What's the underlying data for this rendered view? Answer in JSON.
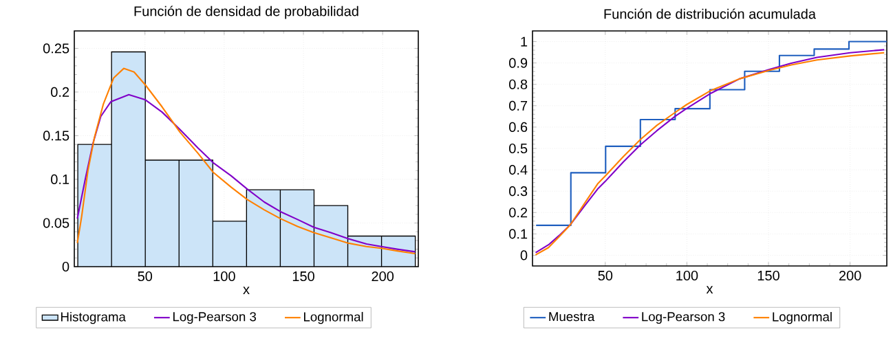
{
  "chart_data": [
    {
      "type": "histogram",
      "title": "Función de densidad de probabilidad",
      "xlabel": "x",
      "bins": [
        7.6,
        28.9,
        50.2,
        71.5,
        92.8,
        114.1,
        135.4,
        156.7,
        178.0,
        199.3,
        220.6
      ],
      "xlim": [
        5.4,
        222.5
      ],
      "ylim": [
        0,
        0.27
      ],
      "xticks": [
        50,
        100,
        150,
        200
      ],
      "yticks": [
        0,
        0.05,
        0.1,
        0.15,
        0.2,
        0.25
      ],
      "grid": true,
      "legend": "bottom",
      "marker": "none",
      "series": [
        {
          "name": "Histograma",
          "color": "#cce4f8",
          "values": [
            0.14,
            0.246,
            0.122,
            0.122,
            0.052,
            0.088,
            0.088,
            0.07,
            0.035,
            0.035
          ]
        },
        {
          "name": "Log-Pearson 3",
          "type": "line",
          "color": "#8000c8",
          "x": [
            7.3,
            12.4,
            17.3,
            22.1,
            28.5,
            39.8,
            50.3,
            60.8,
            72.1,
            83.4,
            93.1,
            104.4,
            114.4,
            125.3,
            135.5,
            146.3,
            156.6,
            167.3,
            178.2,
            189.8,
            199.2,
            209.2,
            220.5
          ],
          "values": [
            0.055,
            0.101,
            0.142,
            0.172,
            0.189,
            0.197,
            0.191,
            0.177,
            0.157,
            0.136,
            0.119,
            0.104,
            0.089,
            0.074,
            0.063,
            0.054,
            0.045,
            0.039,
            0.032,
            0.026,
            0.023,
            0.02,
            0.017
          ]
        },
        {
          "name": "Lognormal",
          "type": "line",
          "color": "#ff8000",
          "x": [
            7.3,
            10.0,
            14.0,
            18.1,
            23.7,
            30.2,
            36.6,
            43.1,
            50.3,
            60.8,
            72.1,
            83.4,
            93.1,
            104.4,
            114.4,
            125.3,
            135.5,
            146.3,
            156.6,
            167.3,
            178.2,
            189.8,
            199.2,
            209.2,
            220.5
          ],
          "values": [
            0.027,
            0.057,
            0.11,
            0.148,
            0.186,
            0.216,
            0.227,
            0.223,
            0.208,
            0.183,
            0.154,
            0.13,
            0.108,
            0.091,
            0.077,
            0.065,
            0.055,
            0.046,
            0.039,
            0.033,
            0.027,
            0.023,
            0.021,
            0.018,
            0.015
          ]
        }
      ]
    },
    {
      "type": "line",
      "title": "Función de distribución acumulada",
      "xlabel": "x",
      "xlim": [
        5.4,
        222.5
      ],
      "ylim": [
        -0.05,
        1.05
      ],
      "xticks": [
        50,
        100,
        150,
        200
      ],
      "yticks": [
        0,
        0.1,
        0.2,
        0.3,
        0.4,
        0.5,
        0.6,
        0.7,
        0.8,
        0.9,
        1
      ],
      "grid": true,
      "legend": "bottom",
      "marker": "none",
      "series": [
        {
          "name": "Muestra",
          "type": "step",
          "color": "#1f5fbf",
          "x": [
            7.6,
            28.9,
            50.2,
            71.5,
            92.8,
            114.1,
            135.4,
            156.7,
            178.0,
            199.3,
            222.5
          ],
          "values": [
            0.14,
            0.386,
            0.51,
            0.635,
            0.686,
            0.775,
            0.861,
            0.935,
            0.965,
            1.0,
            1.0
          ]
        },
        {
          "name": "Log-Pearson 3",
          "color": "#8000c8",
          "x": [
            7.3,
            15.2,
            21.5,
            28.6,
            37.3,
            45.3,
            50,
            61.1,
            71.4,
            81.6,
            92.7,
            99.8,
            114.9,
            132.3,
            150.2,
            163.9,
            179.7,
            200,
            220.9
          ],
          "values": [
            0.012,
            0.049,
            0.091,
            0.143,
            0.231,
            0.31,
            0.346,
            0.437,
            0.516,
            0.583,
            0.65,
            0.687,
            0.759,
            0.826,
            0.869,
            0.899,
            0.926,
            0.948,
            0.962
          ]
        },
        {
          "name": "Lognormal",
          "color": "#ff8000",
          "x": [
            7.3,
            15.2,
            21.5,
            28.6,
            37.3,
            45.3,
            50,
            61.1,
            71.4,
            81.6,
            92.7,
            99.8,
            114.9,
            132.3,
            150.2,
            163.9,
            179.7,
            200,
            220.9
          ],
          "values": [
            0.002,
            0.036,
            0.085,
            0.143,
            0.243,
            0.334,
            0.371,
            0.462,
            0.541,
            0.608,
            0.668,
            0.705,
            0.772,
            0.826,
            0.865,
            0.891,
            0.914,
            0.933,
            0.948
          ]
        }
      ]
    }
  ]
}
